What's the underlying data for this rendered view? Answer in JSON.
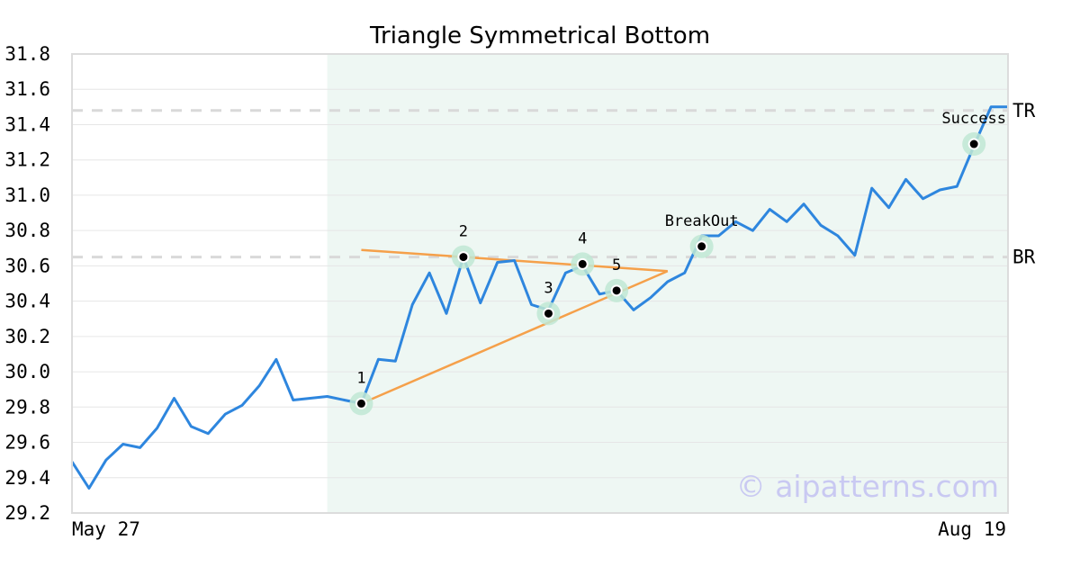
{
  "chart_data": {
    "type": "line",
    "title": "Triangle Symmetrical Bottom",
    "xlabel": "",
    "ylabel": "",
    "ylim": [
      29.2,
      31.8
    ],
    "y_ticks": [
      "29.2",
      "29.4",
      "29.6",
      "29.8",
      "30.0",
      "30.2",
      "30.4",
      "30.6",
      "30.8",
      "31.0",
      "31.2",
      "31.4",
      "31.6",
      "31.8"
    ],
    "x_labels": [
      "May 27",
      "Aug 19"
    ],
    "grid": true,
    "series": [
      {
        "color": "#2e86de",
        "values": [
          29.49,
          29.34,
          29.5,
          29.59,
          29.57,
          29.68,
          29.85,
          29.69,
          29.65,
          29.76,
          29.81,
          29.92,
          30.07,
          29.84,
          29.85,
          29.86,
          29.84,
          29.82,
          30.07,
          30.06,
          30.38,
          30.56,
          30.33,
          30.65,
          30.39,
          30.62,
          30.63,
          30.38,
          30.35,
          30.56,
          30.6,
          30.44,
          30.46,
          30.35,
          30.42,
          30.51,
          30.56,
          30.77,
          30.77,
          30.85,
          30.8,
          30.92,
          30.85,
          30.95,
          30.83,
          30.77,
          30.66,
          31.04,
          30.93,
          31.09,
          30.98,
          31.03,
          31.05,
          31.28,
          31.5,
          31.5
        ]
      }
    ],
    "highlight_range": {
      "start_index": 15,
      "end_index": 55,
      "color": "#eef7f3"
    },
    "levels": [
      {
        "label": "BR",
        "value": 30.65
      },
      {
        "label": "TR",
        "value": 31.48
      }
    ],
    "trendlines": [
      {
        "color": "#f5a04a",
        "from": {
          "index": 17,
          "value": 30.69
        },
        "to": {
          "index": 35,
          "value": 30.57
        }
      },
      {
        "color": "#f5a04a",
        "from": {
          "index": 17,
          "value": 29.82
        },
        "to": {
          "index": 35,
          "value": 30.57
        }
      }
    ],
    "points": [
      {
        "label": "1",
        "index": 17,
        "value": 29.82
      },
      {
        "label": "2",
        "index": 23,
        "value": 30.65
      },
      {
        "label": "3",
        "index": 28,
        "value": 30.33
      },
      {
        "label": "4",
        "index": 30,
        "value": 30.61
      },
      {
        "label": "5",
        "index": 32,
        "value": 30.46
      },
      {
        "label": "BreakOut",
        "index": 37,
        "value": 30.71
      },
      {
        "label": "Success",
        "index": 53,
        "value": 31.29
      }
    ],
    "watermark": "© aipatterns.com"
  }
}
